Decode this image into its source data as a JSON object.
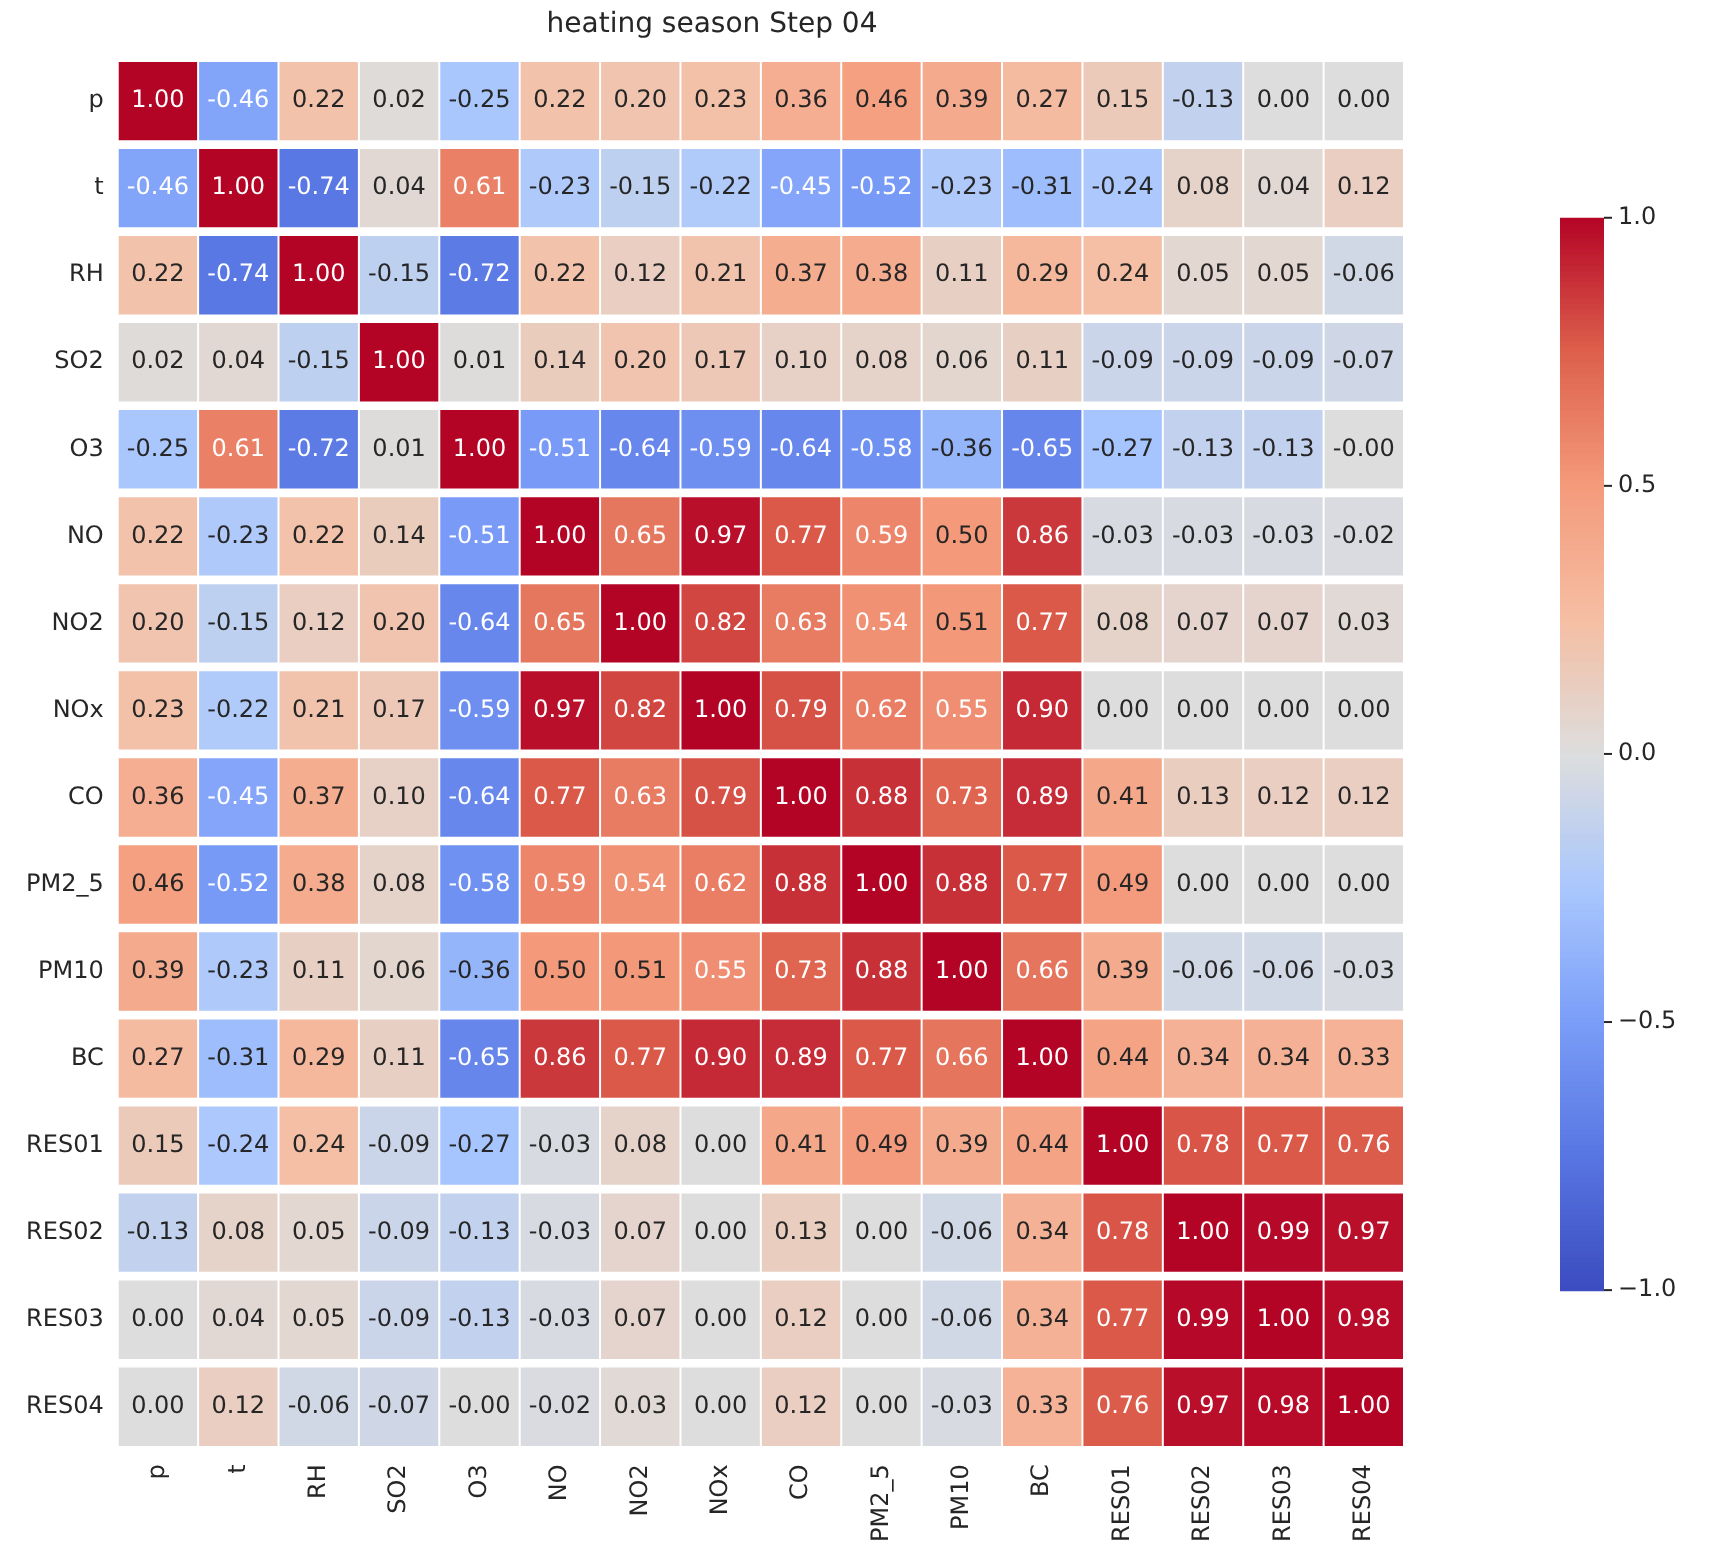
{
  "chart_data": {
    "type": "heatmap",
    "title": "heating season Step 04",
    "categories": [
      "p",
      "t",
      "RH",
      "SO2",
      "O3",
      "NO",
      "NO2",
      "NOx",
      "CO",
      "PM2_5",
      "PM10",
      "BC",
      "RES01",
      "RES02",
      "RES03",
      "RES04"
    ],
    "y_categories": [
      "p",
      "t",
      "RH",
      "SO2",
      "O3",
      "NO",
      "NO2",
      "NOx",
      "CO",
      "PM2_5",
      "PM10",
      "BC",
      "RES01",
      "RES02",
      "RES03",
      "RES04"
    ],
    "cells": [
      [
        1.0,
        -0.46,
        0.22,
        0.02,
        -0.25,
        0.22,
        0.2,
        0.23,
        0.36,
        0.46,
        0.39,
        0.27,
        0.15,
        -0.13,
        0.0,
        0.0
      ],
      [
        -0.46,
        1.0,
        -0.74,
        0.04,
        0.61,
        -0.23,
        -0.15,
        -0.22,
        -0.45,
        -0.52,
        -0.23,
        -0.31,
        -0.24,
        0.08,
        0.04,
        0.12
      ],
      [
        0.22,
        -0.74,
        1.0,
        -0.15,
        -0.72,
        0.22,
        0.12,
        0.21,
        0.37,
        0.38,
        0.11,
        0.29,
        0.24,
        0.05,
        0.05,
        -0.06
      ],
      [
        0.02,
        0.04,
        -0.15,
        1.0,
        0.01,
        0.14,
        0.2,
        0.17,
        0.1,
        0.08,
        0.06,
        0.11,
        -0.09,
        -0.09,
        -0.09,
        -0.07
      ],
      [
        -0.25,
        0.61,
        -0.72,
        0.01,
        1.0,
        -0.51,
        -0.64,
        -0.59,
        -0.64,
        -0.58,
        -0.36,
        -0.65,
        -0.27,
        -0.13,
        -0.13,
        0.0
      ],
      [
        0.22,
        -0.23,
        0.22,
        0.14,
        -0.51,
        1.0,
        0.65,
        0.97,
        0.77,
        0.59,
        0.5,
        0.86,
        -0.03,
        -0.03,
        -0.03,
        -0.02
      ],
      [
        0.2,
        -0.15,
        0.12,
        0.2,
        -0.64,
        0.65,
        1.0,
        0.82,
        0.63,
        0.54,
        0.51,
        0.77,
        0.08,
        0.07,
        0.07,
        0.03
      ],
      [
        0.23,
        -0.22,
        0.21,
        0.17,
        -0.59,
        0.97,
        0.82,
        1.0,
        0.79,
        0.62,
        0.55,
        0.9,
        0.0,
        0.0,
        0.0,
        0.0
      ],
      [
        0.36,
        -0.45,
        0.37,
        0.1,
        -0.64,
        0.77,
        0.63,
        0.79,
        1.0,
        0.88,
        0.73,
        0.89,
        0.41,
        0.13,
        0.12,
        0.12
      ],
      [
        0.46,
        -0.52,
        0.38,
        0.08,
        -0.58,
        0.59,
        0.54,
        0.62,
        0.88,
        1.0,
        0.88,
        0.77,
        0.49,
        0.0,
        0.0,
        0.0
      ],
      [
        0.39,
        -0.23,
        0.11,
        0.06,
        -0.36,
        0.5,
        0.51,
        0.55,
        0.73,
        0.88,
        1.0,
        0.66,
        0.39,
        -0.06,
        -0.06,
        -0.03
      ],
      [
        0.27,
        -0.31,
        0.29,
        0.11,
        -0.65,
        0.86,
        0.77,
        0.9,
        0.89,
        0.77,
        0.66,
        1.0,
        0.44,
        0.34,
        0.34,
        0.33
      ],
      [
        0.15,
        -0.24,
        0.24,
        -0.09,
        -0.27,
        -0.03,
        0.08,
        0.0,
        0.41,
        0.49,
        0.39,
        0.44,
        1.0,
        0.78,
        0.77,
        0.76
      ],
      [
        -0.13,
        0.08,
        0.05,
        -0.09,
        -0.13,
        -0.03,
        0.07,
        0.0,
        0.13,
        0.0,
        -0.06,
        0.34,
        0.78,
        1.0,
        0.99,
        0.97
      ],
      [
        0.0,
        0.04,
        0.05,
        -0.09,
        -0.13,
        -0.03,
        0.07,
        0.0,
        0.12,
        0.0,
        -0.06,
        0.34,
        0.77,
        0.99,
        1.0,
        0.98
      ],
      [
        0.0,
        0.12,
        -0.06,
        -0.07,
        0.0,
        -0.02,
        0.03,
        0.0,
        0.12,
        0.0,
        -0.03,
        0.33,
        0.76,
        0.97,
        0.98,
        1.0
      ]
    ],
    "cell_labels": [
      [
        "1.00",
        "-0.46",
        "0.22",
        "0.02",
        "-0.25",
        "0.22",
        "0.20",
        "0.23",
        "0.36",
        "0.46",
        "0.39",
        "0.27",
        "0.15",
        "-0.13",
        "0.00",
        "0.00"
      ],
      [
        "-0.46",
        "1.00",
        "-0.74",
        "0.04",
        "0.61",
        "-0.23",
        "-0.15",
        "-0.22",
        "-0.45",
        "-0.52",
        "-0.23",
        "-0.31",
        "-0.24",
        "0.08",
        "0.04",
        "0.12"
      ],
      [
        "0.22",
        "-0.74",
        "1.00",
        "-0.15",
        "-0.72",
        "0.22",
        "0.12",
        "0.21",
        "0.37",
        "0.38",
        "0.11",
        "0.29",
        "0.24",
        "0.05",
        "0.05",
        "-0.06"
      ],
      [
        "0.02",
        "0.04",
        "-0.15",
        "1.00",
        "0.01",
        "0.14",
        "0.20",
        "0.17",
        "0.10",
        "0.08",
        "0.06",
        "0.11",
        "-0.09",
        "-0.09",
        "-0.09",
        "-0.07"
      ],
      [
        "-0.25",
        "0.61",
        "-0.72",
        "0.01",
        "1.00",
        "-0.51",
        "-0.64",
        "-0.59",
        "-0.64",
        "-0.58",
        "-0.36",
        "-0.65",
        "-0.27",
        "-0.13",
        "-0.13",
        "-0.00"
      ],
      [
        "0.22",
        "-0.23",
        "0.22",
        "0.14",
        "-0.51",
        "1.00",
        "0.65",
        "0.97",
        "0.77",
        "0.59",
        "0.50",
        "0.86",
        "-0.03",
        "-0.03",
        "-0.03",
        "-0.02"
      ],
      [
        "0.20",
        "-0.15",
        "0.12",
        "0.20",
        "-0.64",
        "0.65",
        "1.00",
        "0.82",
        "0.63",
        "0.54",
        "0.51",
        "0.77",
        "0.08",
        "0.07",
        "0.07",
        "0.03"
      ],
      [
        "0.23",
        "-0.22",
        "0.21",
        "0.17",
        "-0.59",
        "0.97",
        "0.82",
        "1.00",
        "0.79",
        "0.62",
        "0.55",
        "0.90",
        "0.00",
        "0.00",
        "0.00",
        "0.00"
      ],
      [
        "0.36",
        "-0.45",
        "0.37",
        "0.10",
        "-0.64",
        "0.77",
        "0.63",
        "0.79",
        "1.00",
        "0.88",
        "0.73",
        "0.89",
        "0.41",
        "0.13",
        "0.12",
        "0.12"
      ],
      [
        "0.46",
        "-0.52",
        "0.38",
        "0.08",
        "-0.58",
        "0.59",
        "0.54",
        "0.62",
        "0.88",
        "1.00",
        "0.88",
        "0.77",
        "0.49",
        "0.00",
        "0.00",
        "0.00"
      ],
      [
        "0.39",
        "-0.23",
        "0.11",
        "0.06",
        "-0.36",
        "0.50",
        "0.51",
        "0.55",
        "0.73",
        "0.88",
        "1.00",
        "0.66",
        "0.39",
        "-0.06",
        "-0.06",
        "-0.03"
      ],
      [
        "0.27",
        "-0.31",
        "0.29",
        "0.11",
        "-0.65",
        "0.86",
        "0.77",
        "0.90",
        "0.89",
        "0.77",
        "0.66",
        "1.00",
        "0.44",
        "0.34",
        "0.34",
        "0.33"
      ],
      [
        "0.15",
        "-0.24",
        "0.24",
        "-0.09",
        "-0.27",
        "-0.03",
        "0.08",
        "0.00",
        "0.41",
        "0.49",
        "0.39",
        "0.44",
        "1.00",
        "0.78",
        "0.77",
        "0.76"
      ],
      [
        "-0.13",
        "0.08",
        "0.05",
        "-0.09",
        "-0.13",
        "-0.03",
        "0.07",
        "0.00",
        "0.13",
        "0.00",
        "-0.06",
        "0.34",
        "0.78",
        "1.00",
        "0.99",
        "0.97"
      ],
      [
        "0.00",
        "0.04",
        "0.05",
        "-0.09",
        "-0.13",
        "-0.03",
        "0.07",
        "0.00",
        "0.12",
        "0.00",
        "-0.06",
        "0.34",
        "0.77",
        "0.99",
        "1.00",
        "0.98"
      ],
      [
        "0.00",
        "0.12",
        "-0.06",
        "-0.07",
        "-0.00",
        "-0.02",
        "0.03",
        "0.00",
        "0.12",
        "0.00",
        "-0.03",
        "0.33",
        "0.76",
        "0.97",
        "0.98",
        "1.00"
      ]
    ],
    "clim": [
      -1,
      1
    ],
    "cticks": [
      {
        "value": -1,
        "label": "−1.0"
      },
      {
        "value": -0.5,
        "label": "−0.5"
      },
      {
        "value": 0,
        "label": "0.0"
      },
      {
        "value": 0.5,
        "label": "0.5"
      },
      {
        "value": 1,
        "label": "1.0"
      }
    ]
  }
}
